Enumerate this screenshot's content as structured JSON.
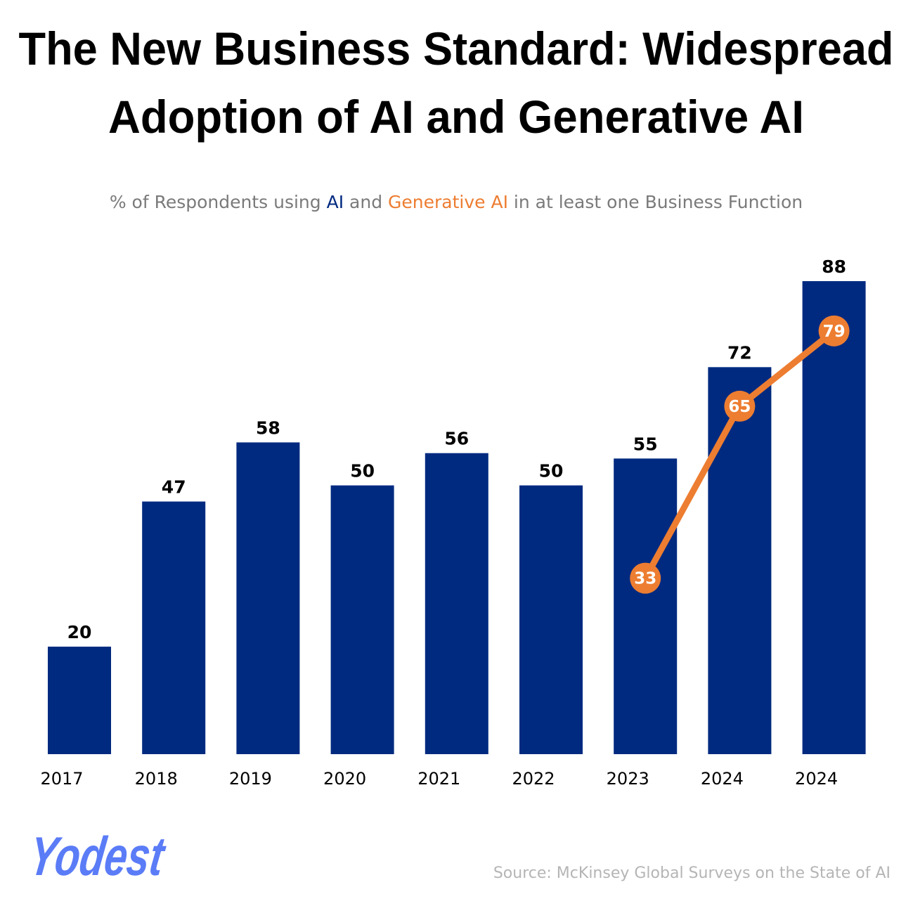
{
  "colors": {
    "ai": "#002a80",
    "generative_ai": "#ed7d31",
    "subtitle": "#7a7a7a",
    "source": "#b5b5b5",
    "logo": "#5b7cf7"
  },
  "chart_data": {
    "type": "bar",
    "title_lines": [
      "The New Business Standard: Widespread",
      "Adoption of AI and Generative AI"
    ],
    "subtitle": {
      "pre": "% of Respondents using ",
      "ai": "AI",
      "mid": " and ",
      "gen": "Generative AI",
      "post": " in at least one Business Function"
    },
    "categories": [
      "2017",
      "2018",
      "2019",
      "2020",
      "2021",
      "2022",
      "2023",
      "2024",
      "2024"
    ],
    "series": [
      {
        "name": "AI",
        "type": "bar",
        "values": [
          20,
          47,
          58,
          50,
          56,
          50,
          55,
          72,
          88
        ]
      },
      {
        "name": "Generative AI",
        "type": "line",
        "values": [
          null,
          null,
          null,
          null,
          null,
          null,
          33,
          65,
          79
        ]
      }
    ],
    "ylim": [
      0,
      88
    ],
    "grid": false,
    "xlabel": "",
    "ylabel": ""
  },
  "source": "Source: McKinsey Global Surveys on the State of AI",
  "logo": "Yodest"
}
